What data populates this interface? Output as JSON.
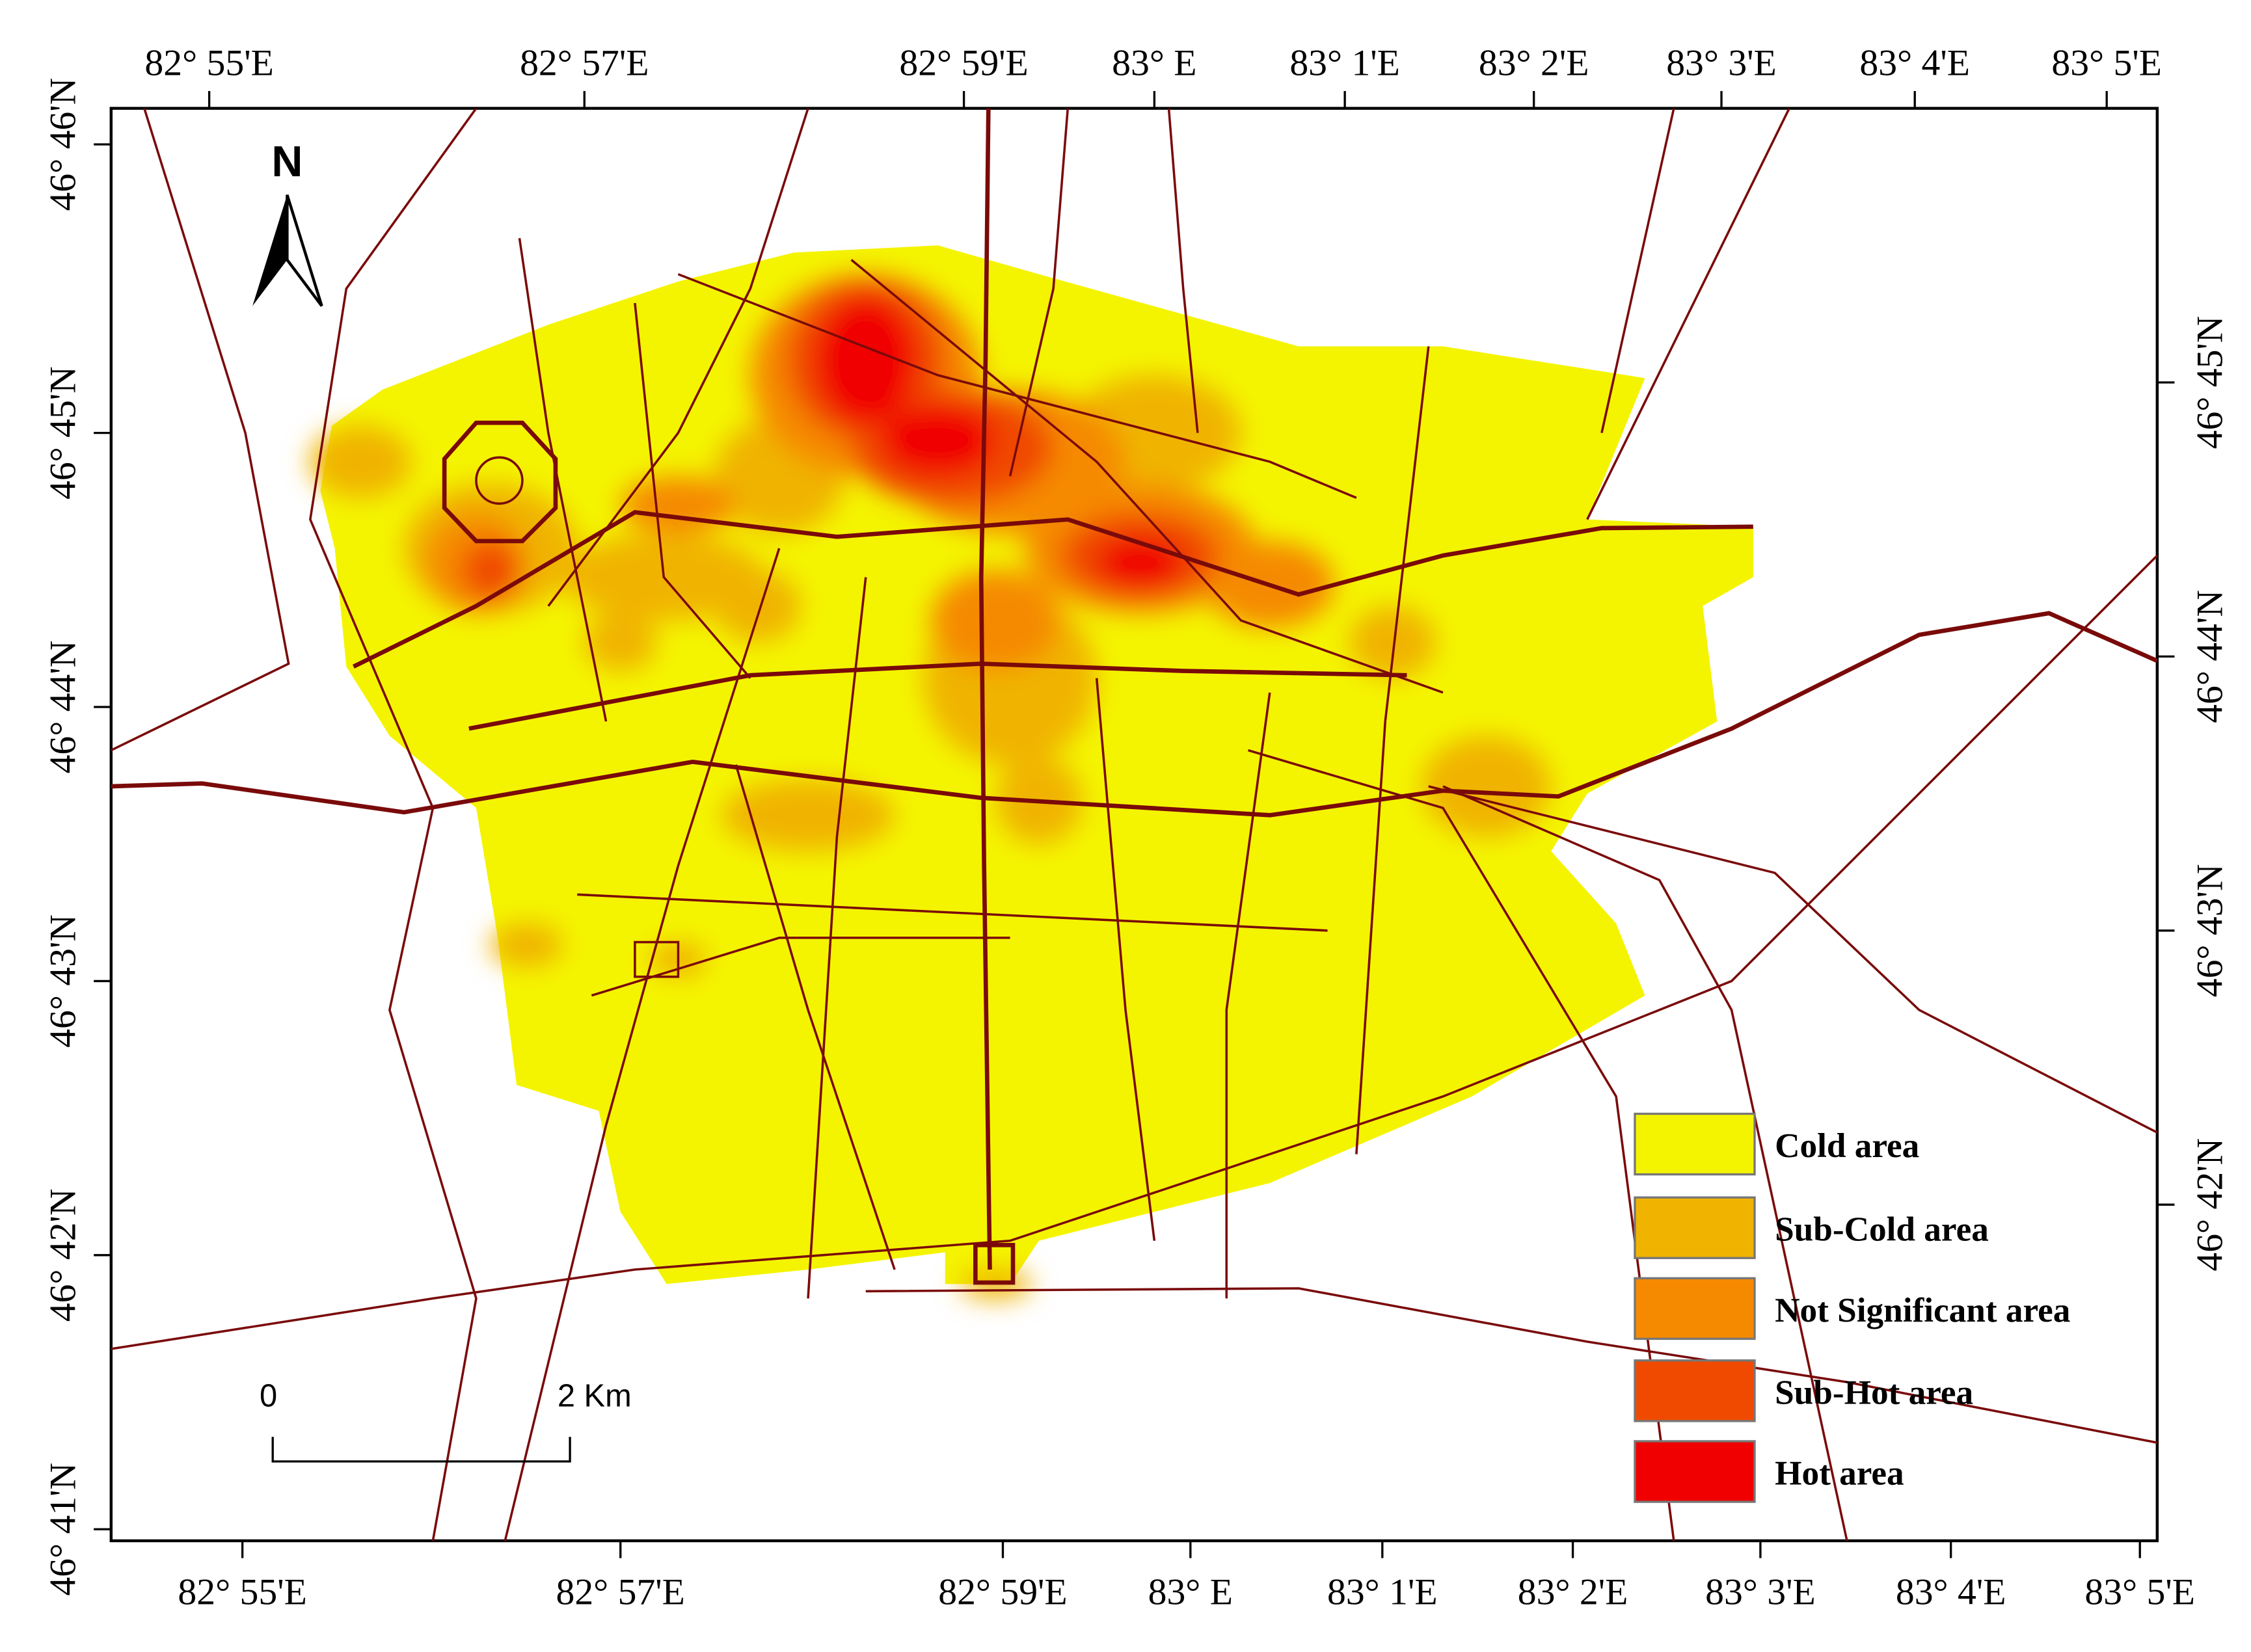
{
  "map": {
    "north": "N",
    "scale_bar": {
      "start": "0",
      "end": "2 Km"
    },
    "legend": [
      {
        "label": "Cold area",
        "color": "#f4f400"
      },
      {
        "label": "Sub-Cold area",
        "color": "#f0b400"
      },
      {
        "label": "Not Significant area",
        "color": "#f58a00"
      },
      {
        "label": "Sub-Hot area",
        "color": "#f04a00"
      },
      {
        "label": "Hot area",
        "color": "#f00000"
      }
    ],
    "axes": {
      "top": [
        "82° 55'E",
        "82° 57'E",
        "82° 59'E",
        "83° E",
        "83° 1'E",
        "83° 2'E",
        "83° 3'E",
        "83° 4'E",
        "83° 5'E"
      ],
      "bottom": [
        "82° 55'E",
        "82° 57'E",
        "82° 59'E",
        "83° E",
        "83° 1'E",
        "83° 2'E",
        "83° 3'E",
        "83° 4'E",
        "83° 5'E"
      ],
      "left": [
        "46° 46'N",
        "46° 45'N",
        "46° 44'N",
        "46° 43'N",
        "46° 42'N",
        "46° 41'N"
      ],
      "right": [
        "46° 45'N",
        "46° 44'N",
        "46° 43'N",
        "46° 42'N"
      ]
    }
  }
}
